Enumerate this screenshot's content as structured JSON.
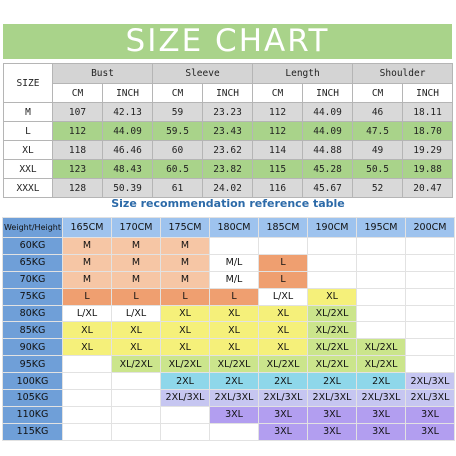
{
  "title": "SIZE CHART",
  "colors": {
    "banner": "#a9d38a",
    "row_gray": "#d9d9d9",
    "row_green": "#a9d38a",
    "weight_col": "#6f9fd8",
    "height_header": "#9ec3ee",
    "title_blue": "#2c6aa8",
    "M": "#f6c6a5",
    "L": "#ef9f70",
    "XL": "#f5f07a",
    "XL/2XL": "#cbe58c",
    "2XL": "#8ed7ea",
    "2XL/3XL": "#c6c6f1",
    "3XL": "#b29ef0",
    "empty": "#ffffff"
  },
  "size_table": {
    "size_label": "SIZE",
    "groups": [
      "Bust",
      "Sleeve",
      "Length",
      "Shoulder"
    ],
    "units": [
      "CM",
      "INCH"
    ],
    "rows": [
      {
        "size": "M",
        "values": [
          "107",
          "42.13",
          "59",
          "23.23",
          "112",
          "44.09",
          "46",
          "18.11"
        ]
      },
      {
        "size": "L",
        "values": [
          "112",
          "44.09",
          "59.5",
          "23.43",
          "112",
          "44.09",
          "47.5",
          "18.70"
        ]
      },
      {
        "size": "XL",
        "values": [
          "118",
          "46.46",
          "60",
          "23.62",
          "114",
          "44.88",
          "49",
          "19.29"
        ]
      },
      {
        "size": "XXL",
        "values": [
          "123",
          "48.43",
          "60.5",
          "23.82",
          "115",
          "45.28",
          "50.5",
          "19.88"
        ]
      },
      {
        "size": "XXXL",
        "values": [
          "128",
          "50.39",
          "61",
          "24.02",
          "116",
          "45.67",
          "52",
          "20.47"
        ]
      }
    ]
  },
  "reference": {
    "title": "Size recommendation reference table",
    "corner_label": "Weight/Height",
    "heights": [
      "165CM",
      "170CM",
      "175CM",
      "180CM",
      "185CM",
      "190CM",
      "195CM",
      "200CM"
    ],
    "rows": [
      {
        "weight": "60KG",
        "cells": [
          "M",
          "M",
          "M",
          "",
          "",
          "",
          "",
          ""
        ]
      },
      {
        "weight": "65KG",
        "cells": [
          "M",
          "M",
          "M",
          "M/L",
          "L",
          "",
          "",
          ""
        ]
      },
      {
        "weight": "70KG",
        "cells": [
          "M",
          "M",
          "M",
          "M/L",
          "L",
          "",
          "",
          ""
        ]
      },
      {
        "weight": "75KG",
        "cells": [
          "L",
          "L",
          "L",
          "L",
          "L/XL",
          "XL",
          "",
          ""
        ]
      },
      {
        "weight": "80KG",
        "cells": [
          "L/XL",
          "L/XL",
          "XL",
          "XL",
          "XL",
          "XL/2XL",
          "",
          ""
        ]
      },
      {
        "weight": "85KG",
        "cells": [
          "XL",
          "XL",
          "XL",
          "XL",
          "XL",
          "XL/2XL",
          "",
          ""
        ]
      },
      {
        "weight": "90KG",
        "cells": [
          "XL",
          "XL",
          "XL",
          "XL",
          "XL",
          "XL/2XL",
          "XL/2XL",
          ""
        ]
      },
      {
        "weight": "95KG",
        "cells": [
          "",
          "XL/2XL",
          "XL/2XL",
          "XL/2XL",
          "XL/2XL",
          "XL/2XL",
          "XL/2XL",
          ""
        ]
      },
      {
        "weight": "100KG",
        "cells": [
          "",
          "",
          "2XL",
          "2XL",
          "2XL",
          "2XL",
          "2XL",
          "2XL/3XL"
        ]
      },
      {
        "weight": "105KG",
        "cells": [
          "",
          "",
          "2XL/3XL",
          "2XL/3XL",
          "2XL/3XL",
          "2XL/3XL",
          "2XL/3XL",
          "2XL/3XL"
        ]
      },
      {
        "weight": "110KG",
        "cells": [
          "",
          "",
          "",
          "3XL",
          "3XL",
          "3XL",
          "3XL",
          "3XL"
        ]
      },
      {
        "weight": "115KG",
        "cells": [
          "",
          "",
          "",
          "",
          "3XL",
          "3XL",
          "3XL",
          "3XL"
        ]
      }
    ]
  }
}
